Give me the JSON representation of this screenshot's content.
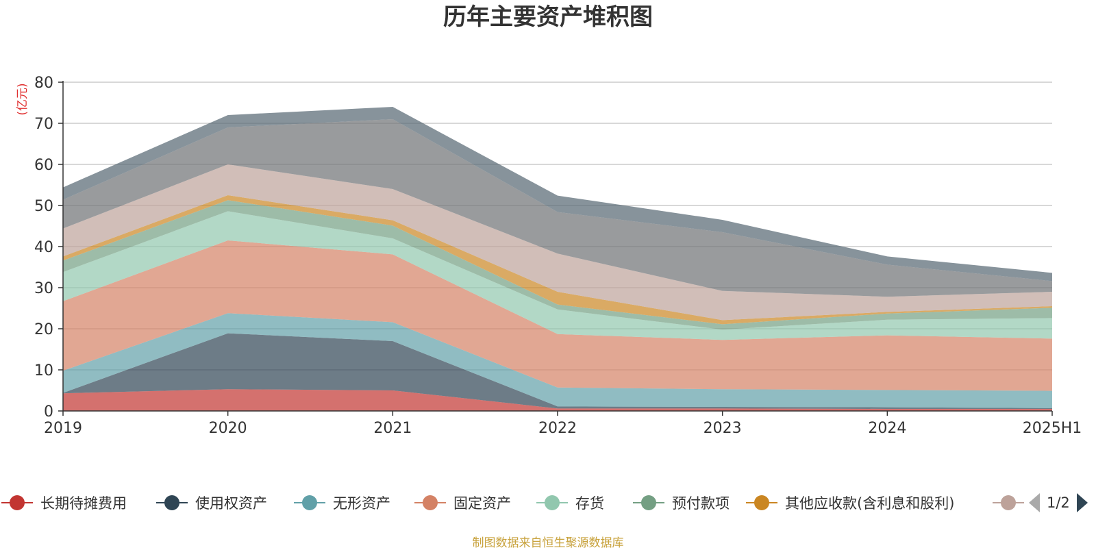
{
  "chart_data": {
    "type": "area",
    "stacked": true,
    "title": "历年主要资产堆积图",
    "y_unit_label": "(亿元)",
    "categories": [
      "2019",
      "2020",
      "2021",
      "2022",
      "2023",
      "2024",
      "2025H1"
    ],
    "ylim": [
      0,
      80
    ],
    "y_ticks": [
      0,
      10,
      20,
      30,
      40,
      50,
      60,
      70,
      80
    ],
    "grid": true,
    "series": [
      {
        "name": "长期待摊费用",
        "color": "#c23531",
        "values": [
          4.3,
          5.3,
          5.0,
          0.6,
          0.6,
          0.5,
          0.5
        ]
      },
      {
        "name": "使用权资产",
        "color": "#2f4554",
        "values": [
          0.1,
          13.6,
          12.0,
          0.5,
          0.4,
          0.4,
          0.2
        ]
      },
      {
        "name": "无形资产",
        "color": "#61a0a8",
        "values": [
          5.4,
          4.9,
          4.6,
          4.6,
          4.3,
          4.2,
          4.2
        ]
      },
      {
        "name": "固定资产",
        "color": "#d48265",
        "values": [
          16.9,
          17.7,
          16.5,
          13.0,
          12.0,
          13.3,
          12.7
        ]
      },
      {
        "name": "存货",
        "color": "#91c7ae",
        "values": [
          7.1,
          7.1,
          3.9,
          6.0,
          2.5,
          3.8,
          5.0
        ]
      },
      {
        "name": "预付款项",
        "color": "#749f83",
        "values": [
          2.8,
          2.7,
          3.1,
          1.2,
          1.3,
          1.5,
          2.5
        ]
      },
      {
        "name": "其他应收款(含利息和股利)",
        "color": "#ca8622",
        "values": [
          1.0,
          1.2,
          1.3,
          3.1,
          1.0,
          0.4,
          0.4
        ]
      },
      {
        "name": "",
        "color": "#bda29a",
        "values": [
          6.8,
          7.5,
          7.6,
          9.3,
          7.1,
          3.7,
          3.5
        ]
      },
      {
        "name": "",
        "color": "#6e7074",
        "values": [
          7.0,
          9.0,
          17.0,
          10.1,
          14.3,
          7.8,
          2.6
        ]
      },
      {
        "name": "",
        "color": "#546570",
        "values": [
          3.0,
          3.0,
          3.0,
          4.0,
          3.0,
          2.0,
          2.0
        ]
      }
    ]
  },
  "legend": {
    "page": "1/2"
  },
  "source_note": "制图数据来自恒生聚源数据库"
}
